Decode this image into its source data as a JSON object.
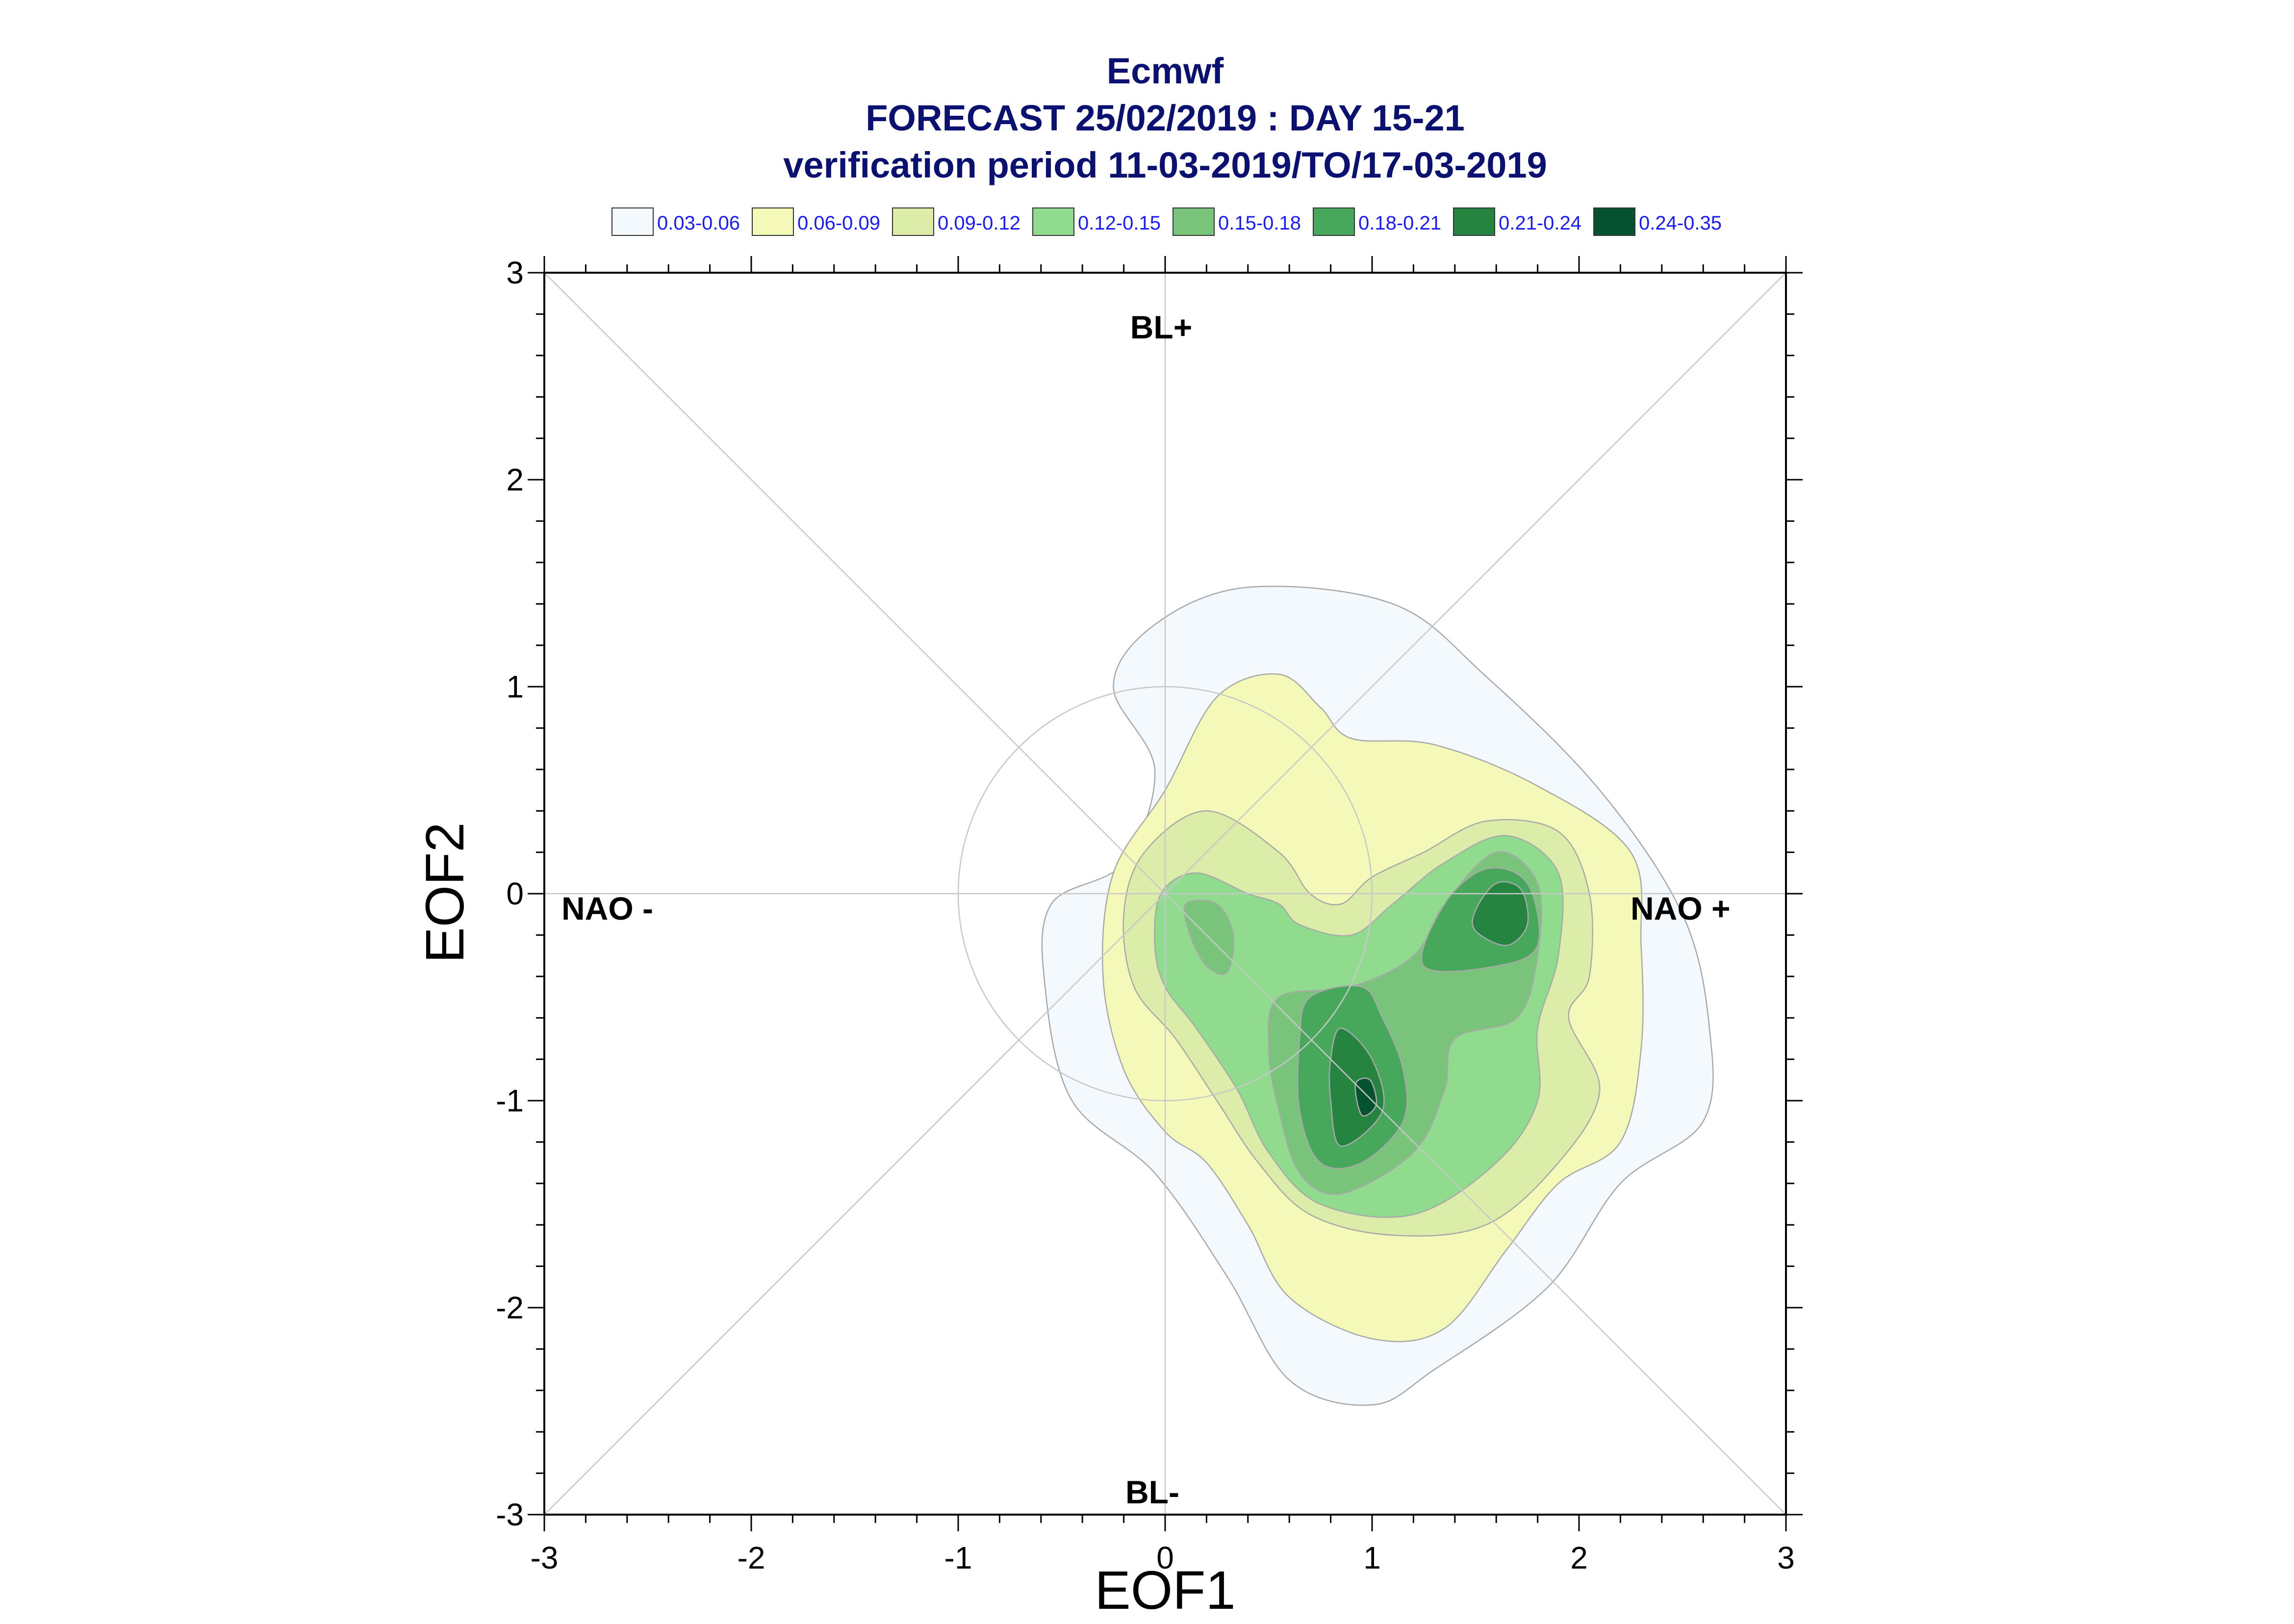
{
  "chart_data": {
    "type": "contour",
    "title": "Ecmwf",
    "subtitle_lines": [
      "FORECAST 25/02/2019 : DAY 15-21",
      "verification period 11-03-2019/TO/17-03-2019"
    ],
    "xlabel": "EOF1",
    "ylabel": "EOF2",
    "xlim": [
      -3,
      3
    ],
    "ylim": [
      -3,
      3
    ],
    "x_ticks": [
      "-3",
      "-2",
      "-1",
      "0",
      "1",
      "2",
      "3"
    ],
    "y_ticks": [
      "-3",
      "-2",
      "-1",
      "0",
      "1",
      "2",
      "3"
    ],
    "regime_labels": {
      "top": "BL+",
      "bottom": "BL-",
      "left": "NAO -",
      "right": "NAO +"
    },
    "legend": [
      {
        "label": "0.03-0.06",
        "color": "#f4f9fd"
      },
      {
        "label": "0.06-0.09",
        "color": "#f5f9b8"
      },
      {
        "label": "0.09-0.12",
        "color": "#dcedaa"
      },
      {
        "label": "0.12-0.15",
        "color": "#8fdc8f"
      },
      {
        "label": "0.15-0.18",
        "color": "#78c47a"
      },
      {
        "label": "0.18-0.21",
        "color": "#47a85c"
      },
      {
        "label": "0.21-0.24",
        "color": "#258440"
      },
      {
        "label": "0.24-0.35",
        "color": "#055230"
      }
    ],
    "contours": [
      {
        "level": "0.03-0.06",
        "points": [
          [
            -0.2,
            0.15
          ],
          [
            -0.05,
            0.6
          ],
          [
            -0.25,
            1.0
          ],
          [
            -0.05,
            1.3
          ],
          [
            0.4,
            1.48
          ],
          [
            1.1,
            1.4
          ],
          [
            1.55,
            1.05
          ],
          [
            2.1,
            0.5
          ],
          [
            2.5,
            -0.1
          ],
          [
            2.63,
            -0.65
          ],
          [
            2.6,
            -1.1
          ],
          [
            2.2,
            -1.4
          ],
          [
            1.85,
            -1.9
          ],
          [
            1.3,
            -2.3
          ],
          [
            1.0,
            -2.47
          ],
          [
            0.6,
            -2.35
          ],
          [
            0.3,
            -1.85
          ],
          [
            -0.05,
            -1.35
          ],
          [
            -0.45,
            -1.0
          ],
          [
            -0.58,
            -0.45
          ],
          [
            -0.55,
            -0.05
          ]
        ]
      },
      {
        "level": "0.06-0.09",
        "points": [
          [
            -0.3,
            -0.4
          ],
          [
            -0.25,
            0.1
          ],
          [
            0.0,
            0.5
          ],
          [
            0.25,
            0.95
          ],
          [
            0.55,
            1.06
          ],
          [
            0.75,
            0.9
          ],
          [
            0.9,
            0.75
          ],
          [
            1.3,
            0.72
          ],
          [
            1.8,
            0.52
          ],
          [
            2.25,
            0.2
          ],
          [
            2.3,
            -0.25
          ],
          [
            2.3,
            -0.75
          ],
          [
            2.2,
            -1.2
          ],
          [
            1.9,
            -1.4
          ],
          [
            1.65,
            -1.72
          ],
          [
            1.35,
            -2.1
          ],
          [
            1.0,
            -2.15
          ],
          [
            0.6,
            -1.95
          ],
          [
            0.4,
            -1.6
          ],
          [
            0.2,
            -1.3
          ],
          [
            0.0,
            -1.15
          ],
          [
            -0.2,
            -0.85
          ]
        ]
      },
      {
        "level": "0.09-0.12",
        "points": [
          [
            -0.2,
            -0.1
          ],
          [
            -0.1,
            0.2
          ],
          [
            0.2,
            0.4
          ],
          [
            0.55,
            0.2
          ],
          [
            0.7,
            0.0
          ],
          [
            0.85,
            -0.05
          ],
          [
            1.0,
            0.08
          ],
          [
            1.25,
            0.2
          ],
          [
            1.55,
            0.35
          ],
          [
            1.9,
            0.3
          ],
          [
            2.05,
            0.0
          ],
          [
            2.05,
            -0.4
          ],
          [
            1.95,
            -0.6
          ],
          [
            2.1,
            -0.95
          ],
          [
            1.9,
            -1.3
          ],
          [
            1.55,
            -1.6
          ],
          [
            1.1,
            -1.65
          ],
          [
            0.7,
            -1.55
          ],
          [
            0.45,
            -1.3
          ],
          [
            0.25,
            -1.0
          ],
          [
            0.05,
            -0.7
          ],
          [
            -0.15,
            -0.45
          ]
        ]
      },
      {
        "level": "0.12-0.15",
        "points": [
          [
            -0.05,
            -0.25
          ],
          [
            -0.02,
            0.0
          ],
          [
            0.15,
            0.1
          ],
          [
            0.4,
            0.0
          ],
          [
            0.55,
            -0.05
          ],
          [
            0.65,
            -0.15
          ],
          [
            0.9,
            -0.2
          ],
          [
            1.1,
            -0.05
          ],
          [
            1.35,
            0.15
          ],
          [
            1.65,
            0.28
          ],
          [
            1.9,
            0.1
          ],
          [
            1.9,
            -0.3
          ],
          [
            1.8,
            -0.65
          ],
          [
            1.8,
            -1.0
          ],
          [
            1.6,
            -1.3
          ],
          [
            1.2,
            -1.55
          ],
          [
            0.75,
            -1.5
          ],
          [
            0.5,
            -1.25
          ],
          [
            0.35,
            -0.95
          ],
          [
            0.15,
            -0.65
          ],
          [
            0.0,
            -0.45
          ]
        ]
      },
      {
        "level": "0.15-0.18",
        "points": [
          [
            0.55,
            -0.5
          ],
          [
            0.9,
            -0.45
          ],
          [
            1.2,
            -0.3
          ],
          [
            1.35,
            -0.05
          ],
          [
            1.6,
            0.2
          ],
          [
            1.8,
            0.05
          ],
          [
            1.8,
            -0.3
          ],
          [
            1.7,
            -0.6
          ],
          [
            1.4,
            -0.7
          ],
          [
            1.35,
            -0.95
          ],
          [
            1.2,
            -1.25
          ],
          [
            0.85,
            -1.45
          ],
          [
            0.65,
            -1.35
          ],
          [
            0.55,
            -1.05
          ],
          [
            0.5,
            -0.75
          ]
        ]
      },
      {
        "level": "0.15-0.18",
        "points": [
          [
            0.1,
            -0.05
          ],
          [
            0.25,
            -0.05
          ],
          [
            0.33,
            -0.2
          ],
          [
            0.3,
            -0.38
          ],
          [
            0.2,
            -0.35
          ],
          [
            0.12,
            -0.2
          ]
        ]
      },
      {
        "level": "0.18-0.21",
        "points": [
          [
            0.7,
            -0.5
          ],
          [
            0.95,
            -0.45
          ],
          [
            1.05,
            -0.6
          ],
          [
            1.15,
            -0.85
          ],
          [
            1.15,
            -1.1
          ],
          [
            0.95,
            -1.3
          ],
          [
            0.75,
            -1.3
          ],
          [
            0.65,
            -1.05
          ],
          [
            0.65,
            -0.7
          ]
        ]
      },
      {
        "level": "0.18-0.21",
        "points": [
          [
            1.25,
            -0.35
          ],
          [
            1.35,
            -0.05
          ],
          [
            1.55,
            0.12
          ],
          [
            1.75,
            0.05
          ],
          [
            1.8,
            -0.25
          ],
          [
            1.6,
            -0.35
          ]
        ]
      },
      {
        "level": "0.21-0.24",
        "points": [
          [
            0.85,
            -0.65
          ],
          [
            1.0,
            -0.8
          ],
          [
            1.05,
            -1.05
          ],
          [
            0.85,
            -1.22
          ],
          [
            0.8,
            -1.0
          ],
          [
            0.8,
            -0.8
          ]
        ]
      },
      {
        "level": "0.21-0.24",
        "points": [
          [
            1.5,
            -0.18
          ],
          [
            1.65,
            -0.25
          ],
          [
            1.75,
            -0.15
          ],
          [
            1.72,
            0.02
          ],
          [
            1.6,
            0.05
          ],
          [
            1.5,
            -0.08
          ]
        ]
      },
      {
        "level": "0.24-0.35",
        "points": [
          [
            0.92,
            -0.92
          ],
          [
            0.99,
            -0.9
          ],
          [
            1.02,
            -1.02
          ],
          [
            0.95,
            -1.07
          ]
        ]
      }
    ],
    "reference_lines": {
      "diagonals": true,
      "axes": true,
      "unit_circle_radius": 1
    }
  }
}
